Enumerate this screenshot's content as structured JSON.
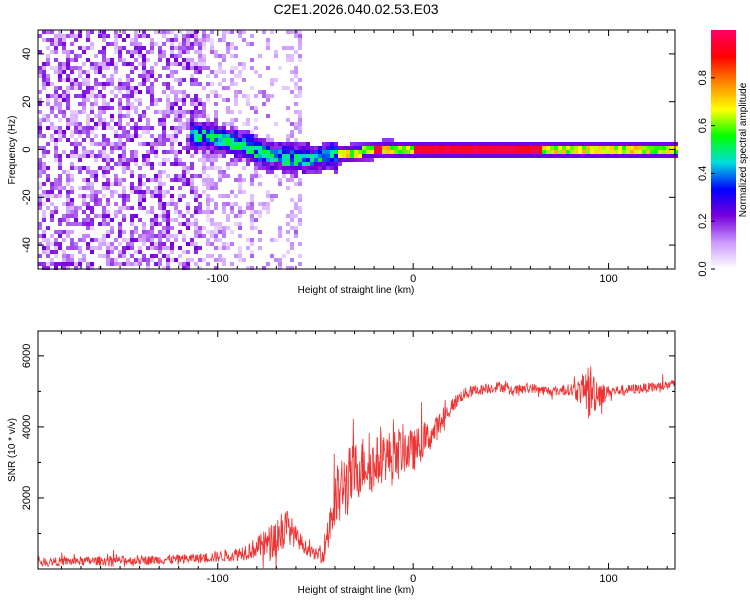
{
  "title": "C2E1.2026.040.02.53.E03",
  "chart_data": [
    {
      "type": "heatmap",
      "xlabel": "Height of straight line (km)",
      "ylabel": "Frequency (Hz)",
      "xlim": [
        -192,
        134
      ],
      "ylim": [
        -50,
        50
      ],
      "xticks": [
        -100,
        0,
        100
      ],
      "xtick_labels": [
        "-100",
        "0",
        "100"
      ],
      "yticks": [
        -40,
        -20,
        0,
        20,
        40
      ],
      "ytick_labels": [
        "-40",
        "-20",
        "0",
        "20",
        "40"
      ],
      "trace_center": [
        [
          -115,
          7
        ],
        [
          -105,
          6
        ],
        [
          -95,
          4
        ],
        [
          -85,
          2
        ],
        [
          -75,
          -2
        ],
        [
          -65,
          -3
        ],
        [
          -55,
          -3
        ],
        [
          -45,
          -2
        ],
        [
          -35,
          -1
        ],
        [
          -25,
          0
        ],
        [
          -15,
          1
        ],
        [
          -5,
          0.5
        ],
        [
          0,
          0.5
        ],
        [
          50,
          0.5
        ],
        [
          100,
          0.5
        ],
        [
          134,
          0.5
        ]
      ],
      "colorbar": {
        "label": "Normalized spectral amplitude",
        "range": [
          0,
          1
        ],
        "ticks": [
          "0.0",
          "0.2",
          "0.4",
          "0.6",
          "0.8"
        ],
        "tick_values": [
          0,
          0.2,
          0.4,
          0.6,
          0.8
        ],
        "colors": [
          "#ffffff",
          "#cc99ff",
          "#7700dd",
          "#0000ff",
          "#00dddd",
          "#00ff00",
          "#ffff00",
          "#ff8800",
          "#ff0000",
          "#ff0066"
        ]
      }
    },
    {
      "type": "line",
      "xlabel": "Height of straight line (km)",
      "ylabel": "SNR (10 * v/v)",
      "xlim": [
        -192,
        134
      ],
      "ylim": [
        0,
        6700
      ],
      "xticks": [
        -100,
        0,
        100
      ],
      "xtick_labels": [
        "-100",
        "0",
        "100"
      ],
      "yticks": [
        2000,
        4000,
        6000
      ],
      "ytick_labels": [
        "2000",
        "4000",
        "6000"
      ],
      "series": [
        {
          "name": "SNR",
          "color": "#ee3333",
          "x": [
            -192,
            -160,
            -130,
            -110,
            -100,
            -90,
            -80,
            -72,
            -68,
            -64,
            -60,
            -55,
            -50,
            -46,
            -42,
            -38,
            -34,
            -30,
            -25,
            -20,
            -15,
            -10,
            -5,
            0,
            5,
            10,
            15,
            20,
            25,
            30,
            35,
            40,
            45,
            50,
            60,
            70,
            80,
            86,
            90,
            93,
            97,
            100,
            110,
            120,
            134
          ],
          "y": [
            200,
            230,
            260,
            300,
            350,
            420,
            600,
            800,
            1050,
            1200,
            900,
            600,
            400,
            450,
            1500,
            2100,
            2400,
            2700,
            3000,
            2900,
            3200,
            3100,
            3400,
            3300,
            3600,
            3800,
            4200,
            4600,
            4900,
            5000,
            5050,
            5100,
            5150,
            5000,
            5100,
            5000,
            5050,
            5000,
            5000,
            5000,
            4950,
            5000,
            5050,
            5100,
            5200
          ],
          "noise_amp": [
            120,
            130,
            130,
            140,
            160,
            200,
            300,
            500,
            700,
            500,
            300,
            200,
            150,
            300,
            900,
            1000,
            1000,
            900,
            800,
            800,
            700,
            800,
            700,
            600,
            500,
            400,
            300,
            220,
            180,
            160,
            150,
            150,
            150,
            150,
            140,
            140,
            160,
            400,
            900,
            600,
            300,
            160,
            140,
            140,
            140
          ]
        }
      ]
    }
  ]
}
